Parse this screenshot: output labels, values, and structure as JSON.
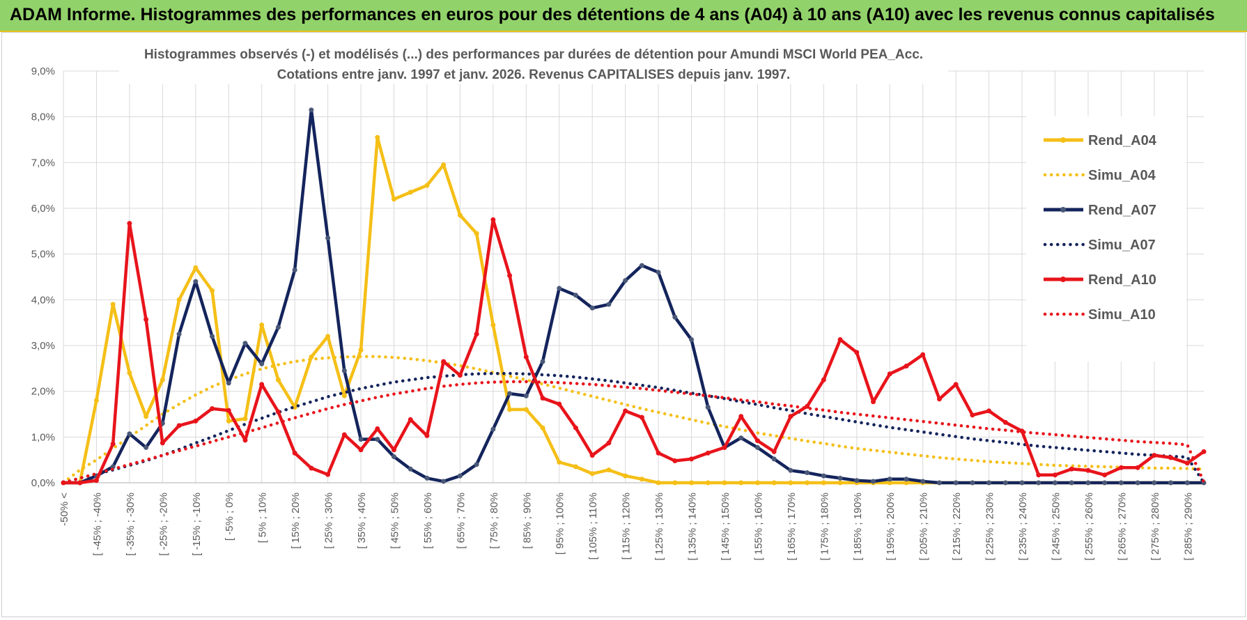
{
  "banner": {
    "title": "ADAM Informe. Histogrammes des performances en euros pour des détentions de 4 ans (A04) à 10 ans (A10) avec les revenus connus capitalisés"
  },
  "colors": {
    "banner_bg": "#92d26a",
    "banner_border": "#e8c21a",
    "A04": "#f5bf17",
    "A07": "#14245c",
    "A10": "#e8141b",
    "grid": "#d9d9d9"
  },
  "chart_data": {
    "type": "line",
    "title_line1": "Histogrammes observés (-) et modélisés (...) des performances par durées de détention pour Amundi MSCI World PEA_Acc.",
    "title_line2": "Cotations entre janv. 1997 et janv. 2026. Revenus CAPITALISES depuis janv. 1997.",
    "y_ticks": [
      "0,0%",
      "1,0%",
      "2,0%",
      "3,0%",
      "4,0%",
      "5,0%",
      "6,0%",
      "7,0%",
      "8,0%",
      "9,0%"
    ],
    "ylim": [
      0,
      9
    ],
    "categories_labeled": [
      "-50% <",
      "[ -45% ; -40%",
      "[ -35% ; -30%",
      "[ -25% ; -20%",
      "[ -15% ; -10%",
      "[ -5% ; 0%",
      "[ 5% ; 10%",
      "[ 15% ; 20%",
      "[ 25% ; 30%",
      "[ 35% ; 40%",
      "[ 45% ; 50%",
      "[ 55% ; 60%",
      "[ 65% ; 70%",
      "[ 75% ; 80%",
      "[ 85% ; 90%",
      "[ 95% ; 100%",
      "[ 105% ; 110%",
      "[ 115% ; 120%",
      "[ 125% ; 130%",
      "[ 135% ; 140%",
      "[ 145% ; 150%",
      "[ 155% ; 160%",
      "[ 165% ; 170%",
      "[ 175% ; 180%",
      "[ 185% ; 190%",
      "[ 195% ; 200%",
      "[ 205% ; 210%",
      "[ 215% ; 220%",
      "[ 225% ; 230%",
      "[ 235% ; 240%",
      "[ 245% ; 250%",
      "[ 255% ; 260%",
      "[ 265% ; 270%",
      "[ 275% ; 280%",
      "[ 285% ; 290%"
    ],
    "n_points": 70,
    "legend": [
      "Rend_A04",
      "Simu_A04",
      "Rend_A07",
      "Simu_A07",
      "Rend_A10",
      "Simu_A10"
    ],
    "series": [
      {
        "name": "Rend_A04",
        "style": "solid",
        "color_key": "A04",
        "values": [
          0,
          0,
          1.8,
          3.9,
          2.4,
          1.45,
          2.25,
          4.0,
          4.7,
          4.2,
          1.35,
          1.4,
          3.45,
          2.25,
          1.65,
          2.75,
          3.2,
          1.9,
          2.9,
          7.55,
          6.2,
          6.35,
          6.5,
          6.95,
          5.85,
          5.45,
          3.45,
          1.6,
          1.6,
          1.2,
          0.45,
          0.35,
          0.2,
          0.28,
          0.15,
          0.08,
          0,
          0,
          0,
          0,
          0,
          0,
          0,
          0,
          0,
          0,
          0,
          0,
          0,
          0,
          0,
          0,
          0,
          0,
          0,
          0,
          0,
          0,
          0,
          0,
          0,
          0,
          0,
          0,
          0,
          0,
          0,
          0,
          0,
          0
        ]
      },
      {
        "name": "Simu_A04",
        "style": "dotted",
        "color_key": "A04",
        "values": [
          0,
          0.28,
          0.5,
          0.75,
          1.0,
          1.25,
          1.5,
          1.72,
          1.92,
          2.1,
          2.25,
          2.38,
          2.49,
          2.58,
          2.65,
          2.7,
          2.73,
          2.75,
          2.76,
          2.76,
          2.74,
          2.71,
          2.67,
          2.62,
          2.56,
          2.49,
          2.41,
          2.33,
          2.25,
          2.16,
          2.07,
          1.98,
          1.89,
          1.8,
          1.71,
          1.62,
          1.54,
          1.46,
          1.38,
          1.3,
          1.23,
          1.16,
          1.09,
          1.03,
          0.97,
          0.91,
          0.86,
          0.8,
          0.75,
          0.71,
          0.67,
          0.63,
          0.59,
          0.55,
          0.52,
          0.49,
          0.46,
          0.44,
          0.42,
          0.4,
          0.38,
          0.37,
          0.36,
          0.35,
          0.34,
          0.33,
          0.32,
          0.32,
          0.31,
          0.3
        ]
      },
      {
        "name": "Rend_A07",
        "style": "solid",
        "color_key": "A07",
        "values": [
          0,
          0,
          0.15,
          0.35,
          1.07,
          0.77,
          1.3,
          3.25,
          4.4,
          3.2,
          2.18,
          3.05,
          2.6,
          3.4,
          4.65,
          8.15,
          5.35,
          2.45,
          0.95,
          0.95,
          0.57,
          0.3,
          0.1,
          0.03,
          0.15,
          0.4,
          1.17,
          1.95,
          1.9,
          2.65,
          4.25,
          4.1,
          3.82,
          3.9,
          4.42,
          4.75,
          4.6,
          3.62,
          3.13,
          1.65,
          0.77,
          0.98,
          0.77,
          0.52,
          0.27,
          0.22,
          0.15,
          0.1,
          0.05,
          0.03,
          0.08,
          0.08,
          0.03,
          0,
          0,
          0,
          0,
          0,
          0,
          0,
          0,
          0,
          0,
          0,
          0,
          0,
          0,
          0,
          0,
          0
        ]
      },
      {
        "name": "Simu_A07",
        "style": "dotted",
        "color_key": "A07",
        "values": [
          0,
          0.1,
          0.19,
          0.28,
          0.38,
          0.48,
          0.6,
          0.73,
          0.87,
          1.0,
          1.14,
          1.28,
          1.41,
          1.54,
          1.66,
          1.77,
          1.88,
          1.97,
          2.06,
          2.13,
          2.2,
          2.25,
          2.3,
          2.33,
          2.36,
          2.38,
          2.39,
          2.39,
          2.38,
          2.36,
          2.34,
          2.31,
          2.27,
          2.23,
          2.18,
          2.13,
          2.08,
          2.02,
          1.96,
          1.9,
          1.84,
          1.77,
          1.71,
          1.64,
          1.58,
          1.51,
          1.45,
          1.39,
          1.33,
          1.27,
          1.21,
          1.16,
          1.11,
          1.06,
          1.01,
          0.96,
          0.92,
          0.88,
          0.84,
          0.8,
          0.77,
          0.74,
          0.71,
          0.68,
          0.65,
          0.62,
          0.6,
          0.58,
          0.56,
          0
        ]
      },
      {
        "name": "Rend_A10",
        "style": "solid",
        "color_key": "A10",
        "values": [
          0,
          0,
          0.05,
          0.85,
          5.67,
          3.57,
          0.87,
          1.25,
          1.35,
          1.62,
          1.58,
          0.93,
          2.15,
          1.55,
          0.65,
          0.32,
          0.18,
          1.05,
          0.72,
          1.18,
          0.72,
          1.38,
          1.03,
          2.65,
          2.35,
          3.25,
          5.75,
          4.53,
          2.75,
          1.85,
          1.72,
          1.2,
          0.6,
          0.87,
          1.57,
          1.43,
          0.65,
          0.48,
          0.52,
          0.65,
          0.77,
          1.45,
          0.92,
          0.68,
          1.45,
          1.67,
          2.25,
          3.13,
          2.85,
          1.77,
          2.38,
          2.55,
          2.8,
          1.83,
          2.15,
          1.48,
          1.57,
          1.32,
          1.13,
          0.17,
          0.17,
          0.3,
          0.27,
          0.17,
          0.33,
          0.33,
          0.6,
          0.55,
          0.43,
          0.68
        ]
      },
      {
        "name": "Simu_A10",
        "style": "dotted",
        "color_key": "A10",
        "values": [
          0,
          0.1,
          0.2,
          0.3,
          0.4,
          0.5,
          0.6,
          0.7,
          0.8,
          0.9,
          1.0,
          1.1,
          1.2,
          1.31,
          1.42,
          1.52,
          1.62,
          1.71,
          1.79,
          1.87,
          1.94,
          2.0,
          2.06,
          2.11,
          2.15,
          2.18,
          2.2,
          2.21,
          2.21,
          2.2,
          2.19,
          2.17,
          2.15,
          2.12,
          2.09,
          2.06,
          2.02,
          1.98,
          1.94,
          1.9,
          1.86,
          1.81,
          1.77,
          1.72,
          1.68,
          1.63,
          1.59,
          1.54,
          1.5,
          1.46,
          1.42,
          1.38,
          1.34,
          1.3,
          1.26,
          1.22,
          1.18,
          1.15,
          1.11,
          1.08,
          1.05,
          1.02,
          0.99,
          0.96,
          0.93,
          0.9,
          0.88,
          0.86,
          0.83,
          0.02
        ]
      }
    ]
  }
}
